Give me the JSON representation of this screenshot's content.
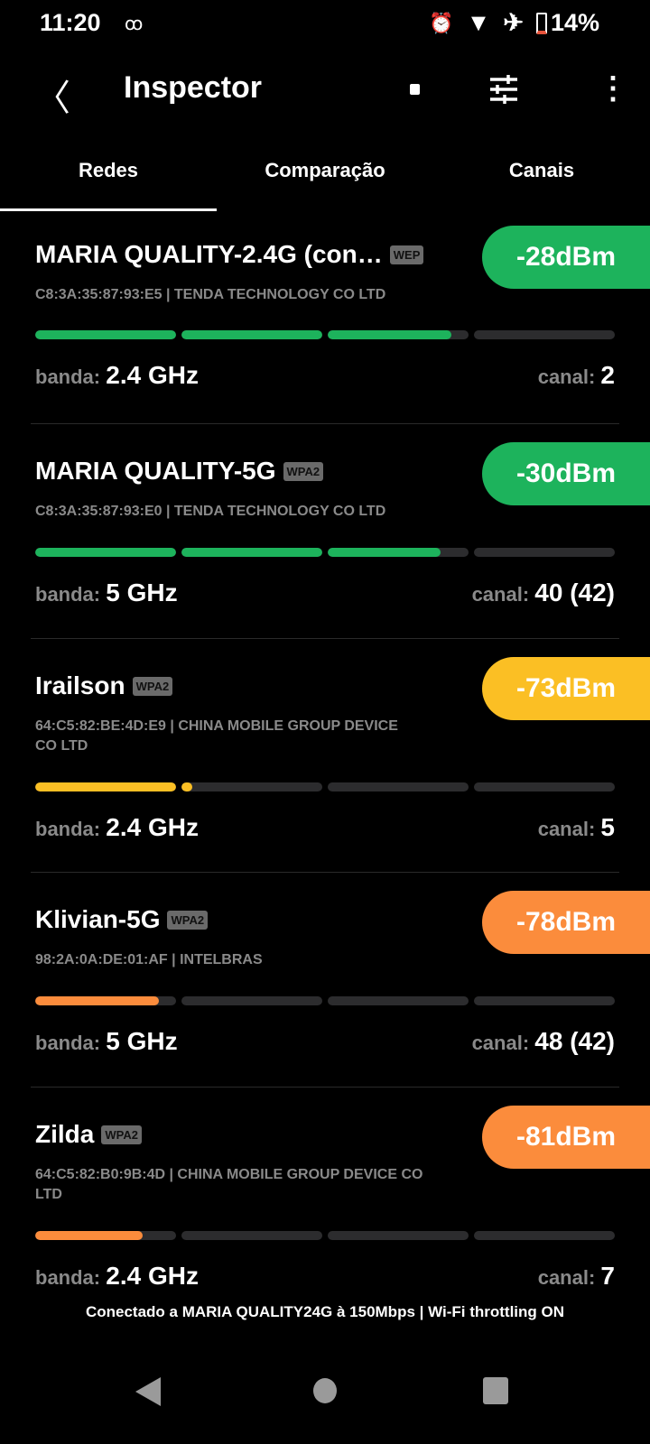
{
  "status_bar": {
    "time": "11:20",
    "battery": "14%",
    "icons": [
      "voicemail-icon",
      "alarm-icon",
      "wifi-icon",
      "airplane-icon",
      "battery-icon"
    ]
  },
  "app_bar": {
    "title": "Inspector",
    "icons": [
      "back-icon",
      "stop-icon",
      "tune-icon",
      "more-vert-icon"
    ]
  },
  "tabs": [
    {
      "label": "Redes",
      "active": true
    },
    {
      "label": "Comparação"
    },
    {
      "label": "Canais"
    }
  ],
  "labels": {
    "band": "banda:",
    "channel": "canal:"
  },
  "colors": {
    "good": "#1db35c",
    "fair": "#fbbf24",
    "weak": "#fb8c3c"
  },
  "networks": [
    {
      "ssid": "MARIA QUALITY-2.4G (con…",
      "security": "WEP",
      "signal": "-28dBm",
      "level": "good",
      "mac": "C8:3A:35:87:93:E5",
      "vendor": "TENDA TECHNOLOGY CO LTD",
      "strength": 0.72,
      "band": "2.4 GHz",
      "channel": "2"
    },
    {
      "ssid": "MARIA QUALITY-5G",
      "security": "WPA2",
      "signal": "-30dBm",
      "level": "good",
      "mac": "C8:3A:35:87:93:E0",
      "vendor": "TENDA TECHNOLOGY CO LTD",
      "strength": 0.7,
      "band": "5 GHz",
      "channel": "40 (42)"
    },
    {
      "ssid": "Irailson",
      "security": "WPA2",
      "signal": "-73dBm",
      "level": "fair",
      "mac": "64:C5:82:BE:4D:E9",
      "vendor": "CHINA MOBILE GROUP DEVICE CO LTD",
      "strength": 0.27,
      "band": "2.4 GHz",
      "channel": "5"
    },
    {
      "ssid": "Klivian-5G",
      "security": "WPA2",
      "signal": "-78dBm",
      "level": "weak",
      "mac": "98:2A:0A:DE:01:AF",
      "vendor": "INTELBRAS",
      "strength": 0.22,
      "band": "5 GHz",
      "channel": "48 (42)"
    },
    {
      "ssid": "Zilda",
      "security": "WPA2",
      "signal": "-81dBm",
      "level": "weak",
      "mac": "64:C5:82:B0:9B:4D",
      "vendor": "CHINA MOBILE GROUP DEVICE CO LTD",
      "strength": 0.19,
      "band": "2.4 GHz",
      "channel": "7"
    }
  ],
  "footer": "Conectado a MARIA QUALITY24G à 150Mbps | Wi-Fi throttling ON"
}
